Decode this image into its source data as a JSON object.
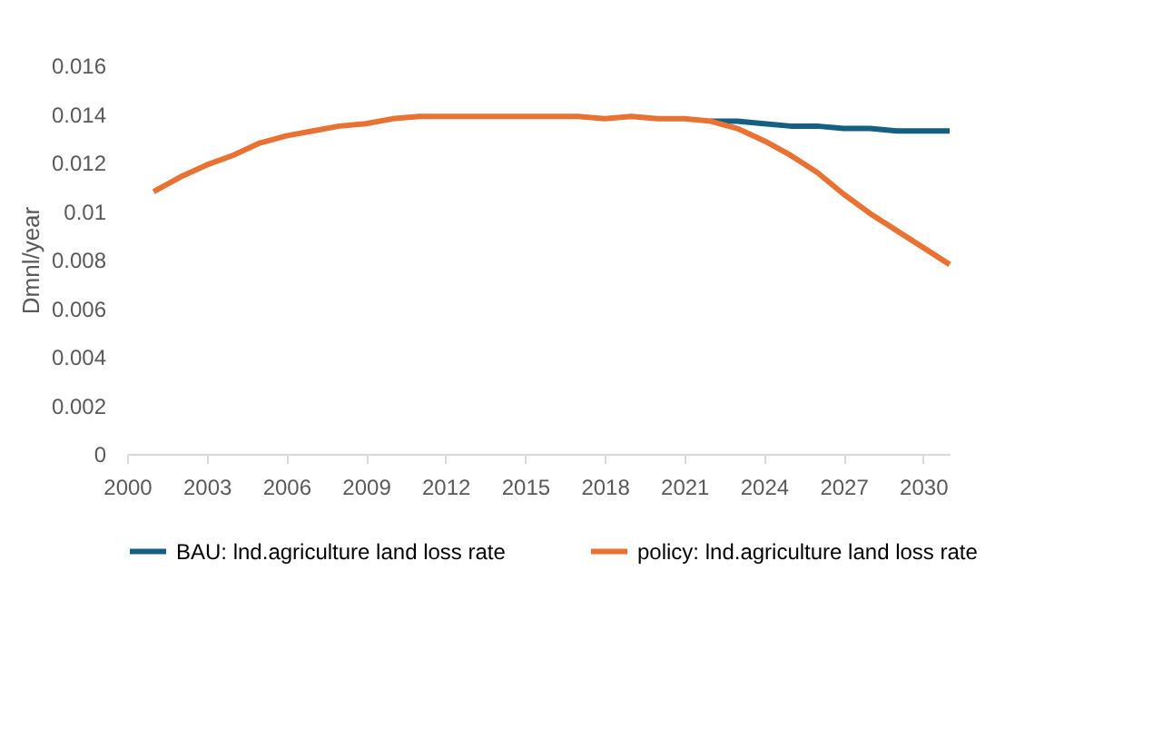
{
  "chart_data": {
    "type": "line",
    "ylabel": "Dmnl/year",
    "x": [
      2001,
      2002,
      2003,
      2004,
      2005,
      2006,
      2007,
      2008,
      2009,
      2010,
      2011,
      2012,
      2013,
      2014,
      2015,
      2016,
      2017,
      2018,
      2019,
      2020,
      2021,
      2022,
      2023,
      2024,
      2025,
      2026,
      2027,
      2028,
      2029,
      2030,
      2031
    ],
    "series": [
      {
        "name": "BAU: lnd.agriculture land loss rate",
        "color": "#156082",
        "values": [
          null,
          null,
          null,
          null,
          null,
          null,
          null,
          null,
          null,
          null,
          null,
          null,
          null,
          null,
          null,
          null,
          null,
          null,
          null,
          null,
          null,
          0.0137,
          0.0137,
          0.0136,
          0.0135,
          0.0135,
          0.0134,
          0.0134,
          0.0133,
          0.0133,
          0.0133
        ]
      },
      {
        "name": "policy: lnd.agriculture land loss rate",
        "color": "#e97132",
        "values": [
          0.0108,
          0.0114,
          0.0119,
          0.0123,
          0.0128,
          0.0131,
          0.0133,
          0.0135,
          0.0136,
          0.0138,
          0.0139,
          0.0139,
          0.0139,
          0.0139,
          0.0139,
          0.0139,
          0.0139,
          0.0138,
          0.0139,
          0.0138,
          0.0138,
          0.0137,
          0.0134,
          0.0129,
          0.0123,
          0.0116,
          0.0107,
          0.0099,
          0.0092,
          0.0085,
          0.0078
        ]
      }
    ],
    "xlim": [
      2000,
      2031
    ],
    "xticks": [
      2000,
      2003,
      2006,
      2009,
      2012,
      2015,
      2018,
      2021,
      2024,
      2027,
      2030
    ],
    "ylim": [
      0,
      0.016
    ],
    "yticks": [
      0,
      0.002,
      0.004,
      0.006,
      0.008,
      0.01,
      0.012,
      0.014,
      0.016
    ],
    "grid": false,
    "legend": "bottom",
    "marker": "none",
    "line_style": "solid"
  }
}
